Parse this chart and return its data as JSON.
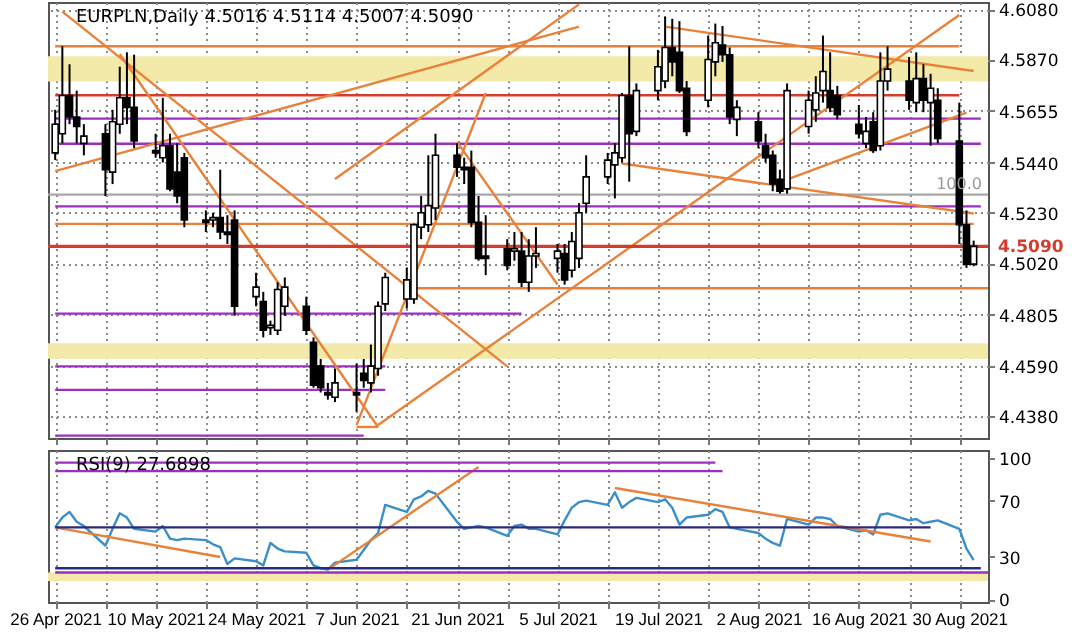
{
  "chart_data": [
    {
      "type": "candlestick",
      "title": "EURPLN,Daily 4.5016 4.5114 4.5007 4.5090",
      "x": [
        "2021-04-26",
        "2021-04-27",
        "2021-04-28",
        "2021-04-29",
        "2021-04-30",
        "2021-05-03",
        "2021-05-04",
        "2021-05-05",
        "2021-05-06",
        "2021-05-07",
        "2021-05-10",
        "2021-05-11",
        "2021-05-12",
        "2021-05-13",
        "2021-05-14",
        "2021-05-17",
        "2021-05-18",
        "2021-05-19",
        "2021-05-20",
        "2021-05-21",
        "2021-05-24",
        "2021-05-25",
        "2021-05-26",
        "2021-05-27",
        "2021-05-28",
        "2021-05-31",
        "2021-06-01",
        "2021-06-02",
        "2021-06-03",
        "2021-06-04",
        "2021-06-07",
        "2021-06-08",
        "2021-06-09",
        "2021-06-10",
        "2021-06-11",
        "2021-06-14",
        "2021-06-15",
        "2021-06-16",
        "2021-06-17",
        "2021-06-18",
        "2021-06-21",
        "2021-06-22",
        "2021-06-23",
        "2021-06-24",
        "2021-06-25",
        "2021-06-28",
        "2021-06-29",
        "2021-06-30",
        "2021-07-01",
        "2021-07-02",
        "2021-07-05",
        "2021-07-06",
        "2021-07-07",
        "2021-07-08",
        "2021-07-09",
        "2021-07-12",
        "2021-07-13",
        "2021-07-14",
        "2021-07-15",
        "2021-07-16",
        "2021-07-19",
        "2021-07-20",
        "2021-07-21",
        "2021-07-22",
        "2021-07-23",
        "2021-07-26",
        "2021-07-27",
        "2021-07-28",
        "2021-07-29",
        "2021-07-30",
        "2021-08-02",
        "2021-08-03",
        "2021-08-04",
        "2021-08-05",
        "2021-08-06",
        "2021-08-09",
        "2021-08-10",
        "2021-08-11",
        "2021-08-12",
        "2021-08-13",
        "2021-08-16",
        "2021-08-17",
        "2021-08-18",
        "2021-08-19",
        "2021-08-20",
        "2021-08-23",
        "2021-08-24",
        "2021-08-25",
        "2021-08-26",
        "2021-08-27",
        "2021-08-30",
        "2021-08-31",
        "2021-09-01"
      ],
      "ohlc": [
        [
          4.548,
          4.566,
          4.545,
          4.56
        ],
        [
          4.556,
          4.5925,
          4.552,
          4.572
        ],
        [
          4.572,
          4.585,
          4.56,
          4.563
        ],
        [
          4.563,
          4.574,
          4.552,
          4.559
        ],
        [
          4.552,
          4.56,
          4.547,
          4.555
        ],
        [
          4.556,
          4.56,
          4.53,
          4.541
        ],
        [
          4.54,
          4.566,
          4.535,
          4.561
        ],
        [
          4.56,
          4.584,
          4.556,
          4.571
        ],
        [
          4.571,
          4.59,
          4.56,
          4.567
        ],
        [
          4.567,
          4.589,
          4.55,
          4.553
        ],
        [
          4.549,
          4.556,
          4.546,
          4.548
        ],
        [
          4.546,
          4.571,
          4.544,
          4.551
        ],
        [
          4.551,
          4.556,
          4.532,
          4.533
        ],
        [
          4.54,
          4.552,
          4.527,
          4.53
        ],
        [
          4.546,
          4.548,
          4.517,
          4.52
        ],
        [
          4.52,
          4.524,
          4.515,
          4.519
        ],
        [
          4.52,
          4.523,
          4.517,
          4.521
        ],
        [
          4.521,
          4.541,
          4.512,
          4.515
        ],
        [
          4.515,
          4.522,
          4.51,
          4.514
        ],
        [
          4.52,
          4.524,
          4.48,
          4.484
        ],
        [
          4.488,
          4.498,
          4.484,
          4.492
        ],
        [
          4.486,
          4.49,
          4.471,
          4.474
        ],
        [
          4.475,
          4.478,
          4.472,
          4.476
        ],
        [
          4.474,
          4.494,
          4.472,
          4.491
        ],
        [
          4.484,
          4.496,
          4.48,
          4.492
        ],
        [
          4.484,
          4.488,
          4.472,
          4.474
        ],
        [
          4.469,
          4.471,
          4.45,
          4.451
        ],
        [
          4.459,
          4.462,
          4.448,
          4.45
        ],
        [
          4.448,
          4.452,
          4.445,
          4.447
        ],
        [
          4.446,
          4.458,
          4.444,
          4.452
        ],
        [
          4.448,
          4.46,
          4.44,
          4.447
        ],
        [
          4.456,
          4.462,
          4.45,
          4.453
        ],
        [
          4.452,
          4.468,
          4.448,
          4.459
        ],
        [
          4.458,
          4.486,
          4.455,
          4.484
        ],
        [
          4.485,
          4.498,
          4.482,
          4.496
        ],
        [
          4.487,
          4.5,
          4.483,
          4.495
        ],
        [
          4.487,
          4.5185,
          4.485,
          4.518
        ],
        [
          4.517,
          4.53,
          4.512,
          4.523
        ],
        [
          4.518,
          4.547,
          4.515,
          4.526
        ],
        [
          4.525,
          4.556,
          4.52,
          4.547
        ],
        [
          4.547,
          4.552,
          4.538,
          4.542
        ],
        [
          4.542,
          4.546,
          4.535,
          4.541
        ],
        [
          4.542,
          4.549,
          4.517,
          4.519
        ],
        [
          4.519,
          4.53,
          4.503,
          4.504
        ],
        [
          4.505,
          4.522,
          4.497,
          4.504
        ],
        [
          4.508,
          4.512,
          4.499,
          4.501
        ],
        [
          4.507,
          4.515,
          4.503,
          4.508
        ],
        [
          4.507,
          4.515,
          4.492,
          4.494
        ],
        [
          4.494,
          4.512,
          4.49,
          4.505
        ],
        [
          4.505,
          4.517,
          4.5,
          4.506
        ],
        [
          4.504,
          4.51,
          4.498,
          4.507
        ],
        [
          4.506,
          4.51,
          4.493,
          4.495
        ],
        [
          4.499,
          4.515,
          4.496,
          4.511
        ],
        [
          4.504,
          4.527,
          4.5,
          4.523
        ],
        [
          4.527,
          4.547,
          4.523,
          4.538
        ],
        [
          4.538,
          4.548,
          4.535,
          4.545
        ],
        [
          4.543,
          4.552,
          4.529,
          4.548
        ],
        [
          4.546,
          4.573,
          4.544,
          4.572
        ],
        [
          4.572,
          4.5925,
          4.536,
          4.556
        ],
        [
          4.557,
          4.577,
          4.555,
          4.574
        ],
        [
          4.574,
          4.591,
          4.57,
          4.584
        ],
        [
          4.578,
          4.605,
          4.575,
          4.592
        ],
        [
          4.592,
          4.604,
          4.58,
          4.586
        ],
        [
          4.59,
          4.603,
          4.573,
          4.574
        ],
        [
          4.575,
          4.578,
          4.555,
          4.557
        ],
        [
          4.57,
          4.597,
          4.567,
          4.587
        ],
        [
          4.586,
          4.602,
          4.58,
          4.594
        ],
        [
          4.593,
          4.601,
          4.586,
          4.589
        ],
        [
          4.589,
          4.592,
          4.56,
          4.563
        ],
        [
          4.562,
          4.57,
          4.555,
          4.567
        ],
        [
          4.561,
          4.565,
          4.55,
          4.553
        ],
        [
          4.551,
          4.556,
          4.544,
          4.546
        ],
        [
          4.547,
          4.549,
          4.532,
          4.535
        ],
        [
          4.537,
          4.541,
          4.531,
          4.532
        ],
        [
          4.533,
          4.577,
          4.531,
          4.574
        ],
        [
          4.559,
          4.574,
          4.556,
          4.57
        ],
        [
          4.566,
          4.58,
          4.561,
          4.573
        ],
        [
          4.574,
          4.597,
          4.569,
          4.582
        ],
        [
          4.574,
          4.59,
          4.565,
          4.567
        ],
        [
          4.572,
          4.576,
          4.562,
          4.564
        ],
        [
          4.56,
          4.568,
          4.554,
          4.556
        ],
        [
          4.552,
          4.563,
          4.55,
          4.557
        ],
        [
          4.561,
          4.565,
          4.548,
          4.549
        ],
        [
          4.551,
          4.59,
          4.549,
          4.578
        ],
        [
          4.578,
          4.5925,
          4.574,
          4.583
        ],
        [
          4.578,
          4.588,
          4.566,
          4.57
        ],
        [
          4.569,
          4.59,
          4.565,
          4.579
        ],
        [
          4.579,
          4.585,
          4.565,
          4.57
        ],
        [
          4.569,
          4.581,
          4.551,
          4.575
        ],
        [
          4.57,
          4.575,
          4.552,
          4.554
        ],
        [
          4.553,
          4.569,
          4.51,
          4.518
        ],
        [
          4.518,
          4.524,
          4.5,
          4.5016
        ],
        [
          4.5016,
          4.5114,
          4.5007,
          4.509
        ]
      ],
      "series": [
        {
          "type": "line",
          "color": "#e8823a",
          "x": [
            "2021-04-26",
            "2021-08-30"
          ],
          "values": [
            4.5925,
            4.5925
          ]
        },
        {
          "type": "line",
          "color": "#d43c2c",
          "x": [
            "2021-04-26",
            "2021-08-30"
          ],
          "values": [
            4.5721,
            4.5721
          ]
        },
        {
          "type": "line",
          "color": "#9a2fc0",
          "x": [
            "2021-04-26",
            "2021-09-02"
          ],
          "values": [
            4.5623,
            4.5623
          ]
        },
        {
          "type": "line",
          "color": "#9a2fc0",
          "x": [
            "2021-04-26",
            "2021-09-02"
          ],
          "values": [
            4.5518,
            4.5518
          ]
        },
        {
          "type": "line",
          "color": "#9a2fc0",
          "x": [
            "2021-04-26",
            "2021-09-02"
          ],
          "values": [
            4.5257,
            4.5257
          ]
        },
        {
          "type": "line",
          "color": "#e8823a",
          "x": [
            "2021-04-26",
            "2021-09-01"
          ],
          "values": [
            4.5184,
            4.5184
          ]
        },
        {
          "type": "line",
          "color": "#e8823a",
          "x": [
            "2021-06-15",
            "2021-09-03"
          ],
          "values": [
            4.4915,
            4.4915
          ]
        },
        {
          "type": "line",
          "color": "#9a2fc0",
          "x": [
            "2021-04-26",
            "2021-06-30"
          ],
          "values": [
            4.4809,
            4.4809
          ]
        },
        {
          "type": "line",
          "color": "#9a2fc0",
          "x": [
            "2021-04-26",
            "2021-06-11"
          ],
          "values": [
            4.4589,
            4.4589
          ]
        },
        {
          "type": "line",
          "color": "#9a2fc0",
          "x": [
            "2021-04-26",
            "2021-06-11"
          ],
          "values": [
            4.4491,
            4.4491
          ]
        },
        {
          "type": "line",
          "color": "#9a2fc0",
          "x": [
            "2021-04-26",
            "2021-06-08"
          ],
          "values": [
            4.43,
            4.43
          ]
        },
        {
          "type": "line",
          "color": "#a8a8a8",
          "x": [
            "2021-04-25",
            "2021-09-03"
          ],
          "values": [
            4.5306,
            4.5306
          ]
        },
        {
          "type": "line",
          "color": "#e8823a",
          "x": [
            "2021-04-27",
            "2021-06-28"
          ],
          "values": [
            4.607,
            4.4589
          ]
        },
        {
          "type": "line",
          "color": "#e8823a",
          "x": [
            "2021-05-05",
            "2021-06-10"
          ],
          "values": [
            4.5893,
            4.4336
          ]
        },
        {
          "type": "line",
          "color": "#e8823a",
          "x": [
            "2021-06-07",
            "2021-06-10"
          ],
          "values": [
            4.4336,
            4.4336
          ]
        },
        {
          "type": "line",
          "color": "#e8823a",
          "x": [
            "2021-04-26",
            "2021-07-08"
          ],
          "values": [
            4.5404,
            4.6007
          ]
        },
        {
          "type": "line",
          "color": "#e8823a",
          "x": [
            "2021-06-04",
            "2021-07-08"
          ],
          "values": [
            4.5371,
            4.61
          ]
        },
        {
          "type": "line",
          "color": "#e8823a",
          "x": [
            "2021-06-07",
            "2021-06-25"
          ],
          "values": [
            4.4344,
            4.573
          ]
        },
        {
          "type": "line",
          "color": "#e8823a",
          "x": [
            "2021-06-21",
            "2021-07-05"
          ],
          "values": [
            4.5526,
            4.4931
          ]
        },
        {
          "type": "line",
          "color": "#e8823a",
          "x": [
            "2021-06-10",
            "2021-08-30"
          ],
          "values": [
            4.4344,
            4.6056
          ]
        },
        {
          "type": "line",
          "color": "#e8823a",
          "x": [
            "2021-07-20",
            "2021-09-01"
          ],
          "values": [
            4.6007,
            4.5822
          ]
        },
        {
          "type": "line",
          "color": "#e8823a",
          "x": [
            "2021-07-14",
            "2021-09-01"
          ],
          "values": [
            4.5436,
            4.5227
          ]
        },
        {
          "type": "line",
          "color": "#e8823a",
          "x": [
            "2021-08-04",
            "2021-08-31"
          ],
          "values": [
            4.5347,
            4.5648
          ]
        }
      ],
      "xlim": [
        "2021-04-25",
        "2021-09-03"
      ],
      "xticks": [
        {
          "value": "2021-04-26",
          "label": null
        },
        {
          "value": "2021-05-03",
          "label": null
        },
        {
          "value": "2021-05-10",
          "label": null
        },
        {
          "value": "2021-05-17",
          "label": null
        },
        {
          "value": "2021-05-24",
          "label": null
        },
        {
          "value": "2021-05-31",
          "label": null
        },
        {
          "value": "2021-06-07",
          "label": null
        },
        {
          "value": "2021-06-14",
          "label": null
        },
        {
          "value": "2021-06-21",
          "label": null
        },
        {
          "value": "2021-06-28",
          "label": null
        },
        {
          "value": "2021-07-05",
          "label": null
        },
        {
          "value": "2021-07-12",
          "label": null
        },
        {
          "value": "2021-07-19",
          "label": null
        },
        {
          "value": "2021-07-26",
          "label": null
        },
        {
          "value": "2021-08-02",
          "label": null
        },
        {
          "value": "2021-08-09",
          "label": null
        },
        {
          "value": "2021-08-16",
          "label": null
        },
        {
          "value": "2021-08-23",
          "label": null
        },
        {
          "value": "2021-08-30",
          "label": null
        }
      ],
      "ylim": [
        4.429,
        4.611
      ],
      "yticks": [
        {
          "value": 4.438,
          "label": "4.4380"
        },
        {
          "value": 4.459,
          "label": "4.4590"
        },
        {
          "value": 4.4805,
          "label": "4.4805"
        },
        {
          "value": 4.502,
          "label": "4.5020"
        },
        {
          "value": 4.523,
          "label": "4.5230"
        },
        {
          "value": 4.544,
          "label": "4.5440"
        },
        {
          "value": 4.5655,
          "label": "4.5655"
        },
        {
          "value": 4.587,
          "label": "4.5870"
        },
        {
          "value": 4.608,
          "label": "4.6080"
        }
      ],
      "tick_labels": "y",
      "grid": true,
      "bands": [
        {
          "axis": "y",
          "from": 4.5778,
          "to": 4.5884,
          "color": "#f3e9a8"
        },
        {
          "axis": "y",
          "from": 4.4621,
          "to": 4.4686,
          "color": "#f3e9a8"
        }
      ],
      "annotations": [
        {
          "text": "100.0",
          "x": "2021-09-03",
          "y": 4.5306
        }
      ],
      "ref_lines": [
        {
          "axis": "y",
          "value": 4.509,
          "label": "4.5090",
          "color": "#d43c2c"
        }
      ]
    },
    {
      "type": "line",
      "title": "RSI(9) 27.6898",
      "series": [
        {
          "color": "#3c8ec8",
          "x": [
            "2021-04-26",
            "2021-04-27",
            "2021-04-28",
            "2021-04-29",
            "2021-04-30",
            "2021-05-03",
            "2021-05-04",
            "2021-05-05",
            "2021-05-06",
            "2021-05-07",
            "2021-05-10",
            "2021-05-11",
            "2021-05-12",
            "2021-05-13",
            "2021-05-14",
            "2021-05-17",
            "2021-05-18",
            "2021-05-19",
            "2021-05-20",
            "2021-05-21",
            "2021-05-24",
            "2021-05-25",
            "2021-05-26",
            "2021-05-27",
            "2021-05-28",
            "2021-05-31",
            "2021-06-01",
            "2021-06-02",
            "2021-06-03",
            "2021-06-04",
            "2021-06-07",
            "2021-06-08",
            "2021-06-09",
            "2021-06-10",
            "2021-06-11",
            "2021-06-14",
            "2021-06-15",
            "2021-06-16",
            "2021-06-17",
            "2021-06-18",
            "2021-06-21",
            "2021-06-22",
            "2021-06-23",
            "2021-06-24",
            "2021-06-25",
            "2021-06-28",
            "2021-06-29",
            "2021-06-30",
            "2021-07-01",
            "2021-07-02",
            "2021-07-05",
            "2021-07-06",
            "2021-07-07",
            "2021-07-08",
            "2021-07-09",
            "2021-07-12",
            "2021-07-13",
            "2021-07-14",
            "2021-07-15",
            "2021-07-16",
            "2021-07-19",
            "2021-07-20",
            "2021-07-21",
            "2021-07-22",
            "2021-07-23",
            "2021-07-26",
            "2021-07-27",
            "2021-07-28",
            "2021-07-29",
            "2021-07-30",
            "2021-08-02",
            "2021-08-03",
            "2021-08-04",
            "2021-08-05",
            "2021-08-06",
            "2021-08-09",
            "2021-08-10",
            "2021-08-11",
            "2021-08-12",
            "2021-08-13",
            "2021-08-16",
            "2021-08-17",
            "2021-08-18",
            "2021-08-19",
            "2021-08-20",
            "2021-08-23",
            "2021-08-24",
            "2021-08-25",
            "2021-08-26",
            "2021-08-27",
            "2021-08-30",
            "2021-08-31",
            "2021-09-01"
          ],
          "values": [
            51,
            58,
            62,
            55,
            52,
            38,
            50,
            61,
            58,
            50,
            48,
            52,
            43,
            42,
            43,
            42,
            39,
            37,
            25,
            29,
            27,
            24,
            40,
            36,
            34,
            33,
            24,
            22,
            21,
            26,
            28,
            35,
            42,
            47,
            67,
            62,
            71,
            73,
            77,
            75,
            55,
            50,
            51,
            52,
            51,
            45,
            52,
            53,
            50,
            50,
            46,
            56,
            65,
            69,
            70,
            67,
            76,
            65,
            69,
            72,
            69,
            71,
            65,
            53,
            58,
            60,
            64,
            62,
            51,
            50,
            47,
            43,
            40,
            38,
            57,
            53,
            58,
            58,
            57,
            52,
            48,
            49,
            46,
            60,
            61,
            56,
            57,
            54,
            55,
            56,
            50,
            36,
            27.7
          ]
        },
        {
          "color": "#e8823a",
          "x": [
            "2021-04-26",
            "2021-05-19"
          ],
          "values": [
            51,
            30
          ]
        },
        {
          "color": "#e8823a",
          "x": [
            "2021-06-03",
            "2021-06-24"
          ],
          "values": [
            21,
            94
          ]
        },
        {
          "color": "#e8823a",
          "x": [
            "2021-07-13",
            "2021-08-26"
          ],
          "values": [
            79,
            41
          ]
        },
        {
          "color": "#2a2a80",
          "x": [
            "2021-04-26",
            "2021-08-26"
          ],
          "values": [
            51,
            51
          ]
        },
        {
          "color": "#9a2fc0",
          "x": [
            "2021-04-26",
            "2021-07-27"
          ],
          "values": [
            97,
            97
          ]
        },
        {
          "color": "#9a2fc0",
          "x": [
            "2021-04-26",
            "2021-07-28"
          ],
          "values": [
            91,
            91
          ]
        },
        {
          "color": "#2a2a80",
          "x": [
            "2021-04-26",
            "2021-09-02"
          ],
          "values": [
            22,
            22
          ]
        },
        {
          "color": "#9a2fc0",
          "x": [
            "2021-04-26",
            "2021-09-03"
          ],
          "values": [
            19,
            19
          ]
        }
      ],
      "xlim": [
        "2021-04-25",
        "2021-09-03"
      ],
      "xticks": [
        {
          "value": "2021-04-26",
          "label": "26 Apr 2021"
        },
        {
          "value": "2021-05-03",
          "label": null
        },
        {
          "value": "2021-05-10",
          "label": "10 May 2021"
        },
        {
          "value": "2021-05-17",
          "label": null
        },
        {
          "value": "2021-05-24",
          "label": "24 May 2021"
        },
        {
          "value": "2021-05-31",
          "label": null
        },
        {
          "value": "2021-06-07",
          "label": "7 Jun 2021"
        },
        {
          "value": "2021-06-14",
          "label": null
        },
        {
          "value": "2021-06-21",
          "label": "21 Jun 2021"
        },
        {
          "value": "2021-06-28",
          "label": null
        },
        {
          "value": "2021-07-05",
          "label": "5 Jul 2021"
        },
        {
          "value": "2021-07-12",
          "label": null
        },
        {
          "value": "2021-07-19",
          "label": "19 Jul 2021"
        },
        {
          "value": "2021-07-26",
          "label": null
        },
        {
          "value": "2021-08-02",
          "label": "2 Aug 2021"
        },
        {
          "value": "2021-08-09",
          "label": null
        },
        {
          "value": "2021-08-16",
          "label": "16 Aug 2021"
        },
        {
          "value": "2021-08-23",
          "label": null
        },
        {
          "value": "2021-08-30",
          "label": "30 Aug 2021"
        }
      ],
      "ylim": [
        -2,
        106
      ],
      "yticks": [
        0,
        30,
        70,
        100
      ],
      "grid": "x",
      "bands": [
        {
          "axis": "y",
          "from": 13,
          "to": 19,
          "color": "#f3e9a8"
        }
      ]
    }
  ]
}
